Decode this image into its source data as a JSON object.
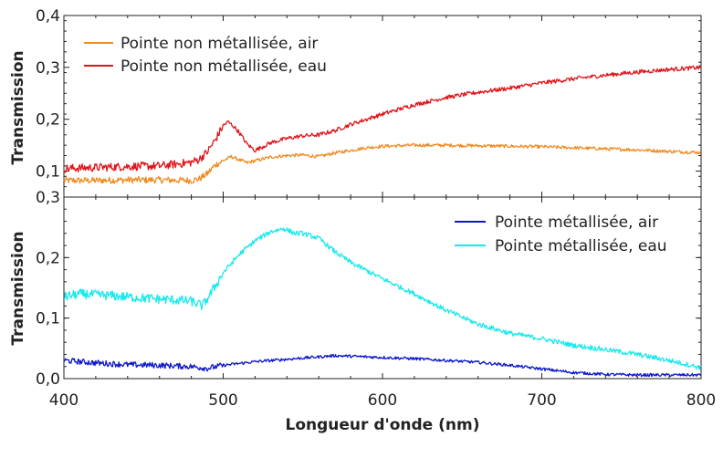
{
  "colors": {
    "orange": "#f08a1e",
    "red": "#e0141a",
    "blue": "#0b17cc",
    "cyan": "#19e9ec"
  },
  "chart_data": [
    {
      "type": "line",
      "panel": "top",
      "ylabel": "Transmission",
      "xlim": [
        400,
        800
      ],
      "ylim": [
        0.05,
        0.4
      ],
      "yticks": [
        0.1,
        0.2,
        0.3,
        0.4
      ],
      "ytick_labels": [
        "0,1",
        "0,2",
        "0,3",
        "0,4"
      ],
      "legend_placement": "top-left",
      "series": [
        {
          "name": "Pointe non métallisée, air",
          "color": "#f08a1e",
          "noise": 0.004,
          "x": [
            400,
            420,
            440,
            460,
            480,
            485,
            490,
            495,
            500,
            505,
            510,
            515,
            520,
            530,
            540,
            550,
            560,
            570,
            580,
            590,
            600,
            620,
            640,
            660,
            680,
            700,
            720,
            740,
            760,
            780,
            800
          ],
          "y": [
            0.082,
            0.082,
            0.083,
            0.083,
            0.082,
            0.085,
            0.095,
            0.112,
            0.12,
            0.128,
            0.122,
            0.116,
            0.12,
            0.127,
            0.13,
            0.131,
            0.128,
            0.135,
            0.14,
            0.145,
            0.148,
            0.15,
            0.15,
            0.149,
            0.148,
            0.147,
            0.145,
            0.143,
            0.141,
            0.138,
            0.136
          ]
        },
        {
          "name": "Pointe non métallisée, eau",
          "color": "#e0141a",
          "noise": 0.005,
          "x": [
            400,
            420,
            440,
            460,
            480,
            485,
            490,
            495,
            500,
            503,
            506,
            510,
            515,
            520,
            530,
            540,
            550,
            560,
            570,
            580,
            600,
            620,
            640,
            660,
            680,
            700,
            720,
            740,
            760,
            780,
            800
          ],
          "y": [
            0.105,
            0.107,
            0.109,
            0.11,
            0.117,
            0.123,
            0.137,
            0.16,
            0.188,
            0.195,
            0.188,
            0.175,
            0.152,
            0.14,
            0.155,
            0.163,
            0.168,
            0.17,
            0.178,
            0.19,
            0.21,
            0.228,
            0.242,
            0.252,
            0.26,
            0.27,
            0.278,
            0.285,
            0.291,
            0.296,
            0.3
          ]
        }
      ]
    },
    {
      "type": "line",
      "panel": "bottom",
      "xlabel": "Longueur d'onde (nm)",
      "ylabel": "Transmission",
      "xlim": [
        400,
        800
      ],
      "ylim": [
        0.0,
        0.3
      ],
      "xticks": [
        400,
        500,
        600,
        700,
        800
      ],
      "xtick_labels": [
        "400",
        "500",
        "600",
        "700",
        "800"
      ],
      "yticks": [
        0.0,
        0.1,
        0.2,
        0.3
      ],
      "ytick_labels": [
        "0,0",
        "0,1",
        "0,2",
        "0,3"
      ],
      "legend_placement": "top-right",
      "series": [
        {
          "name": "Pointe métallisée, air",
          "color": "#0b17cc",
          "noise": 0.003,
          "x": [
            400,
            420,
            440,
            460,
            480,
            490,
            500,
            520,
            540,
            560,
            570,
            580,
            600,
            620,
            640,
            660,
            680,
            700,
            720,
            740,
            760,
            780,
            800
          ],
          "y": [
            0.03,
            0.026,
            0.023,
            0.022,
            0.02,
            0.017,
            0.022,
            0.028,
            0.032,
            0.036,
            0.038,
            0.037,
            0.035,
            0.033,
            0.03,
            0.027,
            0.022,
            0.016,
            0.01,
            0.007,
            0.006,
            0.006,
            0.006
          ]
        },
        {
          "name": "Pointe métallisée, eau",
          "color": "#19e9ec",
          "noise": 0.005,
          "x": [
            400,
            410,
            430,
            450,
            470,
            480,
            487,
            492,
            500,
            510,
            520,
            530,
            538,
            545,
            550,
            560,
            570,
            580,
            600,
            620,
            640,
            660,
            680,
            700,
            720,
            740,
            760,
            780,
            800
          ],
          "y": [
            0.135,
            0.14,
            0.137,
            0.133,
            0.13,
            0.128,
            0.12,
            0.14,
            0.175,
            0.205,
            0.228,
            0.243,
            0.248,
            0.24,
            0.24,
            0.232,
            0.21,
            0.192,
            0.165,
            0.14,
            0.113,
            0.09,
            0.075,
            0.066,
            0.055,
            0.048,
            0.04,
            0.03,
            0.018
          ]
        }
      ]
    }
  ]
}
